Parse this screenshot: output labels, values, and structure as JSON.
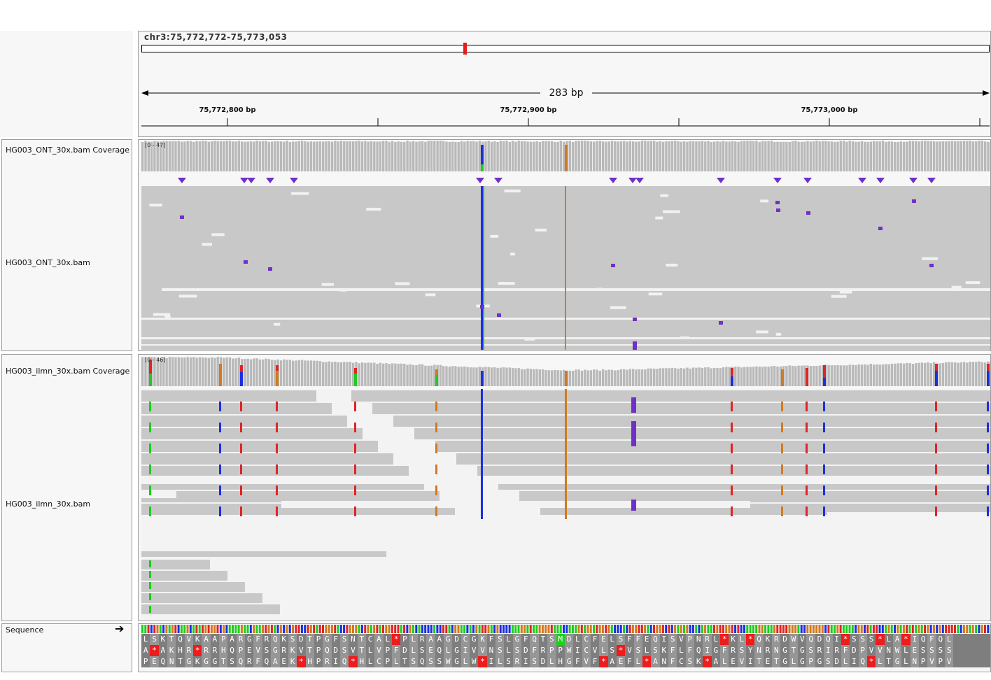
{
  "locus": {
    "text": "chr3:75,772,772-75,773,053"
  },
  "ruler": {
    "span_text": "283 bp",
    "ticks": [
      "75,772,800 bp",
      "75,772,900 bp",
      "75,773,000 bp"
    ]
  },
  "tracks": {
    "ont_coverage": {
      "name": "HG003_ONT_30x.bam Coverage",
      "range": "[0 - 47]"
    },
    "ont_alignment": {
      "name": "HG003_ONT_30x.bam"
    },
    "ilmn_coverage": {
      "name": "HG003_ilmn_30x.bam Coverage",
      "range": "[0 - 46]"
    },
    "ilmn_alignment": {
      "name": "HG003_ilmn_30x.bam"
    },
    "sequence": {
      "name": "Sequence",
      "strand_icon": "right-arrow-icon"
    }
  },
  "translation": {
    "frames": [
      "LSKTQVKAAPARGFRQKSDTPGFSNTCAL*PLRAAGDCGKFSLGFQTSMDLCFELSFFEQISVPNRL*KL*QKRDWVQDQI*SSS*LA*IQFQL",
      "A*AKHR*RRHQPEVSGRKVTPQDSVTLVPFDLSEQLGIVVNSLSDFRPPWICVLS*VSLSKFLFQIGFRSYNRNGTGSRIRFDPVVNWLESSSS",
      "PEQNTGKGGTSQRFQAEK*HPRIQ*HLCPLTSQSSWGLW*ILSRISDLHGFVF*AEFL*ANFCSK*ALEVITETGLGPGSDLIQ*LTGLNPVPV"
    ]
  },
  "colors": {
    "read": "#c8c8c8",
    "insertion": "#7030c8",
    "A": "#1dcc1d",
    "C": "#1a2fe0",
    "G": "#d17a1f",
    "T": "#e02424"
  }
}
